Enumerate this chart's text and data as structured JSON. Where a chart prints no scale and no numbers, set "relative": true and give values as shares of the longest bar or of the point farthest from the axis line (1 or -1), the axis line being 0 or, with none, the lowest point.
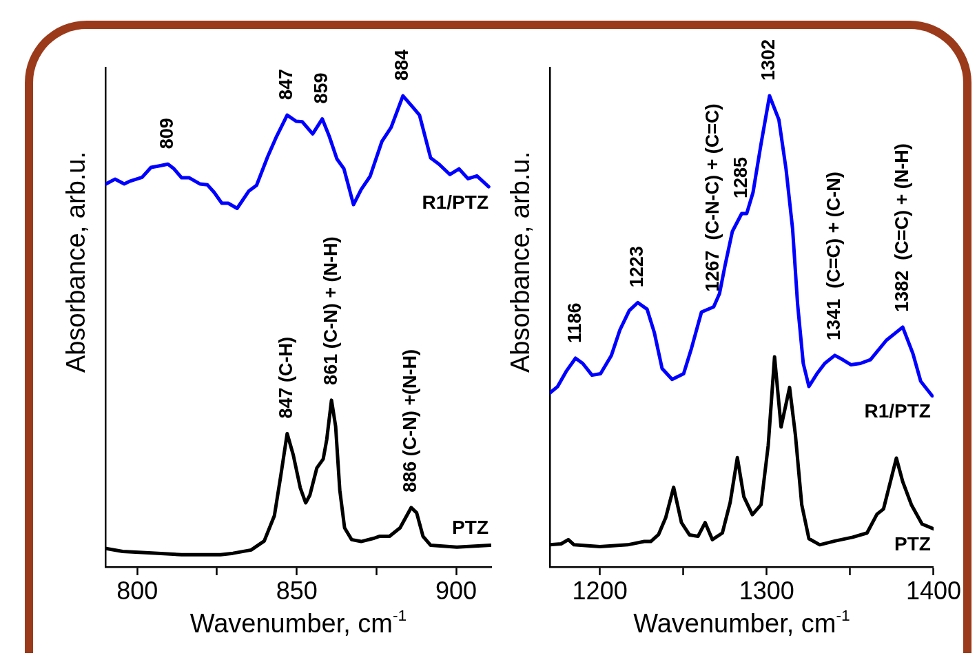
{
  "chart_data": [
    {
      "type": "line",
      "xlabel": "Wavenumber, cm$^{-1}$",
      "ylabel": "Absorbance, arb.u.",
      "relative": true,
      "xlim": [
        790,
        911
      ],
      "xticks": [
        800,
        {
          "value": 825,
          "label": null
        },
        850,
        {
          "value": 875,
          "label": null
        },
        900
      ],
      "marker": "none",
      "line_style": "solid",
      "series": [
        {
          "name": "R1/PTZ",
          "color": "#0000ff",
          "x": [
            790.2,
            793.0,
            795.9,
            797.8,
            801.5,
            804.3,
            806.7,
            809.6,
            811.5,
            813.9,
            816.3,
            819.6,
            822.0,
            824.1,
            826.5,
            828.5,
            831.3,
            835.0,
            837.4,
            840.9,
            843.7,
            847.0,
            849.8,
            851.7,
            855.0,
            858.0,
            860.2,
            862.6,
            864.8,
            867.8,
            870.2,
            873.0,
            876.7,
            879.6,
            883.3,
            886.5,
            888.5,
            892.0,
            894.6,
            898.0,
            900.9,
            903.7,
            906.5,
            910.2
          ],
          "values": [
            0.813,
            0.823,
            0.813,
            0.819,
            0.827,
            0.848,
            0.851,
            0.855,
            0.845,
            0.826,
            0.826,
            0.813,
            0.811,
            0.795,
            0.772,
            0.772,
            0.761,
            0.798,
            0.81,
            0.871,
            0.914,
            0.959,
            0.946,
            0.945,
            0.919,
            0.951,
            0.914,
            0.866,
            0.845,
            0.769,
            0.801,
            0.829,
            0.903,
            0.933,
            1,
            0.975,
            0.959,
            0.868,
            0.855,
            0.833,
            0.845,
            0.824,
            0.83,
            0.807
          ]
        },
        {
          "name": "PTZ",
          "color": "#000000",
          "x": [
            790.2,
            795.4,
            803.5,
            813.9,
            826.1,
            830.0,
            835.7,
            839.8,
            843.0,
            845.0,
            847.0,
            848.9,
            851.1,
            852.8,
            854.1,
            856.3,
            858.3,
            859.4,
            860.9,
            862.2,
            863.5,
            865.0,
            867.2,
            870.2,
            874.3,
            875.9,
            879.1,
            882.4,
            885.9,
            887.6,
            889.6,
            892.0,
            900.2,
            910.7
          ],
          "values": [
            0.039,
            0.033,
            0.03,
            0.026,
            0.026,
            0.029,
            0.036,
            0.055,
            0.109,
            0.194,
            0.283,
            0.238,
            0.168,
            0.136,
            0.152,
            0.21,
            0.229,
            0.27,
            0.354,
            0.298,
            0.163,
            0.083,
            0.058,
            0.054,
            0.061,
            0.065,
            0.065,
            0.083,
            0.126,
            0.115,
            0.065,
            0.046,
            0.042,
            0.046
          ]
        }
      ],
      "annotations": [
        {
          "text": "809",
          "x": 809.6,
          "y": 0.855
        },
        {
          "text": "847",
          "x": 847.0,
          "y": 0.959
        },
        {
          "text": "859",
          "x": 858.0,
          "y": 0.951
        },
        {
          "text": "884",
          "x": 883.3,
          "y": 1
        },
        {
          "text": "847 (C-H)",
          "x": 847.0,
          "y": 0.283
        },
        {
          "text": "861 (C-N) + (N-H)",
          "x": 860.9,
          "y": 0.354
        },
        {
          "text": "886 (C-N) +(N-H)",
          "x": 885.9,
          "y": 0.126
        }
      ]
    },
    {
      "type": "line",
      "xlabel": "Wavenumber, cm$^{-1}$",
      "ylabel": "Absorbance, arb.u.",
      "relative": true,
      "xlim": [
        1170,
        1400
      ],
      "xticks": [
        1200,
        {
          "value": 1250,
          "label": null
        },
        1300,
        {
          "value": 1350,
          "label": null
        },
        1400
      ],
      "marker": "none",
      "line_style": "solid",
      "series": [
        {
          "name": "R1/PTZ",
          "color": "#0000ff",
          "x": [
            1170.0,
            1174.7,
            1179.8,
            1185.4,
            1189.7,
            1195.3,
            1200.4,
            1206.9,
            1212.0,
            1217.6,
            1222.7,
            1228.3,
            1232.6,
            1237.3,
            1243.3,
            1250.2,
            1254.9,
            1260.9,
            1268.2,
            1271.7,
            1275.1,
            1279.4,
            1285.0,
            1288.0,
            1291.8,
            1296.6,
            1301.7,
            1307.3,
            1311.6,
            1315.5,
            1318.5,
            1321.9,
            1325.3,
            1330.1,
            1334.8,
            1340.8,
            1345.5,
            1350.6,
            1356.2,
            1362.2,
            1371.7,
            1381.5,
            1387.6,
            1392.3,
            1399.2
          ],
          "values": [
            0.369,
            0.383,
            0.415,
            0.443,
            0.432,
            0.407,
            0.41,
            0.449,
            0.503,
            0.544,
            0.561,
            0.547,
            0.498,
            0.421,
            0.398,
            0.41,
            0.464,
            0.541,
            0.552,
            0.58,
            0.641,
            0.712,
            0.75,
            0.75,
            0.795,
            0.898,
            1,
            0.949,
            0.844,
            0.718,
            0.558,
            0.432,
            0.383,
            0.41,
            0.432,
            0.449,
            0.44,
            0.429,
            0.432,
            0.44,
            0.481,
            0.509,
            0.453,
            0.394,
            0.363
          ]
        },
        {
          "name": "PTZ",
          "color": "#000000",
          "x": [
            1170.0,
            1176.8,
            1181.1,
            1184.5,
            1200.0,
            1216.7,
            1226.6,
            1230.5,
            1235.2,
            1239.5,
            1244.2,
            1248.9,
            1253.7,
            1258.8,
            1263.1,
            1267.4,
            1273.4,
            1278.1,
            1282.4,
            1286.3,
            1291.4,
            1296.6,
            1300.9,
            1304.7,
            1308.6,
            1313.7,
            1317.2,
            1321.0,
            1325.3,
            1331.8,
            1340.8,
            1351.5,
            1360.1,
            1366.1,
            1370.0,
            1377.7,
            1381.5,
            1386.7,
            1393.1,
            1400.0
          ],
          "values": [
            0.047,
            0.049,
            0.058,
            0.047,
            0.043,
            0.047,
            0.054,
            0.054,
            0.069,
            0.105,
            0.169,
            0.094,
            0.068,
            0.065,
            0.094,
            0.058,
            0.072,
            0.137,
            0.232,
            0.149,
            0.111,
            0.132,
            0.258,
            0.446,
            0.297,
            0.381,
            0.28,
            0.132,
            0.06,
            0.047,
            0.055,
            0.063,
            0.072,
            0.112,
            0.123,
            0.231,
            0.181,
            0.132,
            0.091,
            0.081
          ]
        }
      ],
      "annotations": [
        {
          "text": "1186",
          "x": 1185.4,
          "y": 0.443
        },
        {
          "text": "1223",
          "x": 1222.7,
          "y": 0.561
        },
        {
          "text": "1267  (C-N-C) + (C=C)",
          "x": 1268.2,
          "y": 0.552
        },
        {
          "text": "1285",
          "x": 1285.0,
          "y": 0.75
        },
        {
          "text": "1302",
          "x": 1301.7,
          "y": 1
        },
        {
          "text": "1341  (C=C) + (C-N)",
          "x": 1340.8,
          "y": 0.449
        },
        {
          "text": "1382  (C=C) + (N-H)",
          "x": 1381.5,
          "y": 0.509
        }
      ]
    }
  ]
}
